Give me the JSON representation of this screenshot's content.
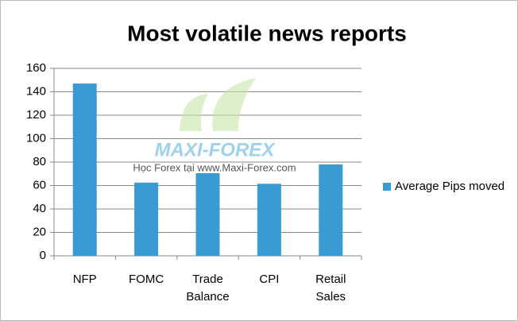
{
  "chart_data": {
    "type": "bar",
    "title": "Most volatile news reports",
    "categories": [
      "NFP",
      "FOMC",
      "Trade Balance",
      "CPI",
      "Retail Sales"
    ],
    "series": [
      {
        "name": "Average Pips moved",
        "color": "#3a9ad2",
        "values": [
          147,
          62.5,
          70.5,
          61.5,
          78
        ]
      }
    ],
    "ylim": [
      0,
      160
    ],
    "yticks": [
      0,
      20,
      40,
      60,
      80,
      100,
      120,
      140,
      160
    ],
    "grid": true,
    "legend": "right",
    "watermark": {
      "brand": "MAXI-FOREX",
      "tagline": "Học Forex tại www.Maxi-Forex.com"
    }
  }
}
